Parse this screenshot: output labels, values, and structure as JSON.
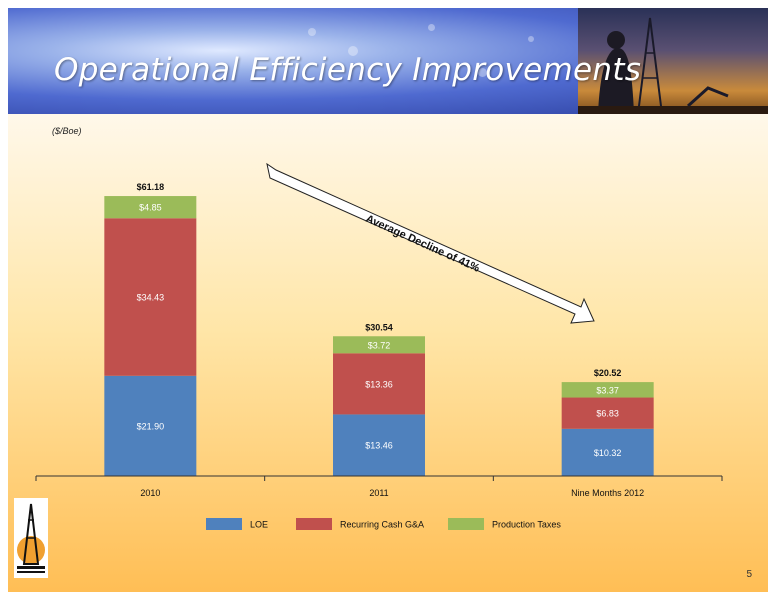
{
  "slide": {
    "title": "Operational Efficiency Improvements",
    "unit_label": "($/Boe)",
    "arrow_text": "Average Decline of 41%",
    "page_number": "5"
  },
  "chart_data": {
    "type": "bar",
    "stacked": true,
    "ylabel": "($/Boe)",
    "categories": [
      "2010",
      "2011",
      "Nine Months 2012"
    ],
    "series": [
      {
        "name": "LOE",
        "color": "#4f81bd",
        "values": [
          21.9,
          13.46,
          10.32
        ],
        "labels": [
          "$21.90",
          "$13.46",
          "$10.32"
        ]
      },
      {
        "name": "Recurring Cash G&A",
        "color": "#c0504d",
        "values": [
          34.43,
          13.36,
          6.83
        ],
        "labels": [
          "$34.43",
          "$13.36",
          "$6.83"
        ]
      },
      {
        "name": "Production Taxes",
        "color": "#9bbb59",
        "values": [
          4.85,
          3.72,
          3.37
        ],
        "labels": [
          "$4.85",
          "$3.72",
          "$3.37"
        ]
      }
    ],
    "totals": [
      61.18,
      30.54,
      20.52
    ],
    "total_labels": [
      "$61.18",
      "$30.54",
      "$20.52"
    ],
    "ylim": [
      0,
      66
    ],
    "grid": false,
    "legend_position": "bottom"
  }
}
